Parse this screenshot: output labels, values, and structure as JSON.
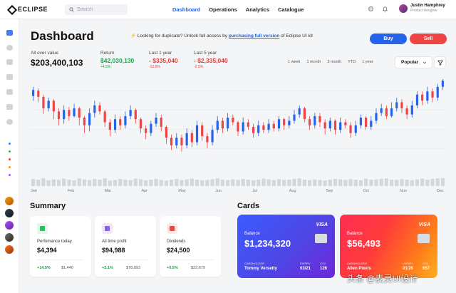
{
  "app": {
    "brand": "ECLIPSE"
  },
  "search": {
    "placeholder": "Search"
  },
  "nav": {
    "items": [
      "Dashboard",
      "Operations",
      "Analytics",
      "Catalogue"
    ],
    "active": "Dashboard"
  },
  "user": {
    "name": "Justin Hamphrey",
    "role": "Product designer"
  },
  "page": {
    "title": "Dashboard",
    "promo_text": "Looking for duplicate? Unlock full access by",
    "promo_link": "purchasing full version",
    "promo_tail": "of Eclipse UI kit",
    "buy_label": "Buy",
    "sell_label": "Sell"
  },
  "stats": [
    {
      "label": "All over value",
      "value": "$203,400,103",
      "change": ""
    },
    {
      "label": "Return",
      "value": "$42,030,130",
      "change": "+4.5%",
      "color": "#16a34a"
    },
    {
      "label": "Last 1 year",
      "value": "- $335,040",
      "change": "-12.5%",
      "color": "#e23b3b"
    },
    {
      "label": "Last 5 year",
      "value": "- $2,335,040",
      "change": "-2.5%",
      "color": "#e23b3b"
    }
  ],
  "ranges": [
    "1 week",
    "1 month",
    "3 month",
    "YTD",
    "1 year"
  ],
  "sort": {
    "selected": "Popular"
  },
  "chart_data": {
    "type": "candlestick",
    "x_labels": [
      "Jan",
      "Feb",
      "Mar",
      "Apr",
      "May",
      "Jun",
      "Jul",
      "Aug",
      "Sep",
      "Oct",
      "Nov",
      "Dec"
    ],
    "colors": {
      "up": "#2563eb",
      "down": "#ef4444"
    },
    "candles": [
      {
        "o": 0.78,
        "c": 0.86,
        "h": 0.9,
        "l": 0.72
      },
      {
        "o": 0.85,
        "c": 0.77,
        "h": 0.88,
        "l": 0.7
      },
      {
        "o": 0.77,
        "c": 0.62,
        "h": 0.8,
        "l": 0.55
      },
      {
        "o": 0.62,
        "c": 0.72,
        "h": 0.76,
        "l": 0.58
      },
      {
        "o": 0.72,
        "c": 0.58,
        "h": 0.74,
        "l": 0.48
      },
      {
        "o": 0.58,
        "c": 0.48,
        "h": 0.62,
        "l": 0.4
      },
      {
        "o": 0.48,
        "c": 0.6,
        "h": 0.66,
        "l": 0.42
      },
      {
        "o": 0.6,
        "c": 0.52,
        "h": 0.64,
        "l": 0.46
      },
      {
        "o": 0.52,
        "c": 0.62,
        "h": 0.68,
        "l": 0.5
      },
      {
        "o": 0.62,
        "c": 0.5,
        "h": 0.64,
        "l": 0.4
      },
      {
        "o": 0.5,
        "c": 0.4,
        "h": 0.52,
        "l": 0.3
      },
      {
        "o": 0.4,
        "c": 0.56,
        "h": 0.62,
        "l": 0.32
      },
      {
        "o": 0.56,
        "c": 0.66,
        "h": 0.72,
        "l": 0.5
      },
      {
        "o": 0.66,
        "c": 0.58,
        "h": 0.7,
        "l": 0.54
      },
      {
        "o": 0.58,
        "c": 0.44,
        "h": 0.6,
        "l": 0.38
      },
      {
        "o": 0.44,
        "c": 0.34,
        "h": 0.48,
        "l": 0.26
      },
      {
        "o": 0.34,
        "c": 0.48,
        "h": 0.54,
        "l": 0.3
      },
      {
        "o": 0.48,
        "c": 0.4,
        "h": 0.52,
        "l": 0.34
      },
      {
        "o": 0.4,
        "c": 0.52,
        "h": 0.58,
        "l": 0.36
      },
      {
        "o": 0.52,
        "c": 0.6,
        "h": 0.66,
        "l": 0.48
      },
      {
        "o": 0.6,
        "c": 0.48,
        "h": 0.62,
        "l": 0.42
      },
      {
        "o": 0.48,
        "c": 0.36,
        "h": 0.5,
        "l": 0.3
      },
      {
        "o": 0.36,
        "c": 0.3,
        "h": 0.4,
        "l": 0.22
      },
      {
        "o": 0.3,
        "c": 0.42,
        "h": 0.46,
        "l": 0.26
      },
      {
        "o": 0.42,
        "c": 0.5,
        "h": 0.56,
        "l": 0.38
      },
      {
        "o": 0.5,
        "c": 0.38,
        "h": 0.54,
        "l": 0.32
      },
      {
        "o": 0.38,
        "c": 0.24,
        "h": 0.4,
        "l": 0.16
      },
      {
        "o": 0.24,
        "c": 0.14,
        "h": 0.28,
        "l": 0.08
      },
      {
        "o": 0.14,
        "c": 0.24,
        "h": 0.3,
        "l": 0.1
      },
      {
        "o": 0.24,
        "c": 0.14,
        "h": 0.28,
        "l": 0.06
      },
      {
        "o": 0.14,
        "c": 0.3,
        "h": 0.36,
        "l": 0.1
      },
      {
        "o": 0.3,
        "c": 0.18,
        "h": 0.34,
        "l": 0.12
      },
      {
        "o": 0.18,
        "c": 0.4,
        "h": 0.46,
        "l": 0.14
      },
      {
        "o": 0.4,
        "c": 0.26,
        "h": 0.44,
        "l": 0.2
      },
      {
        "o": 0.26,
        "c": 0.18,
        "h": 0.3,
        "l": 0.1
      },
      {
        "o": 0.18,
        "c": 0.34,
        "h": 0.4,
        "l": 0.14
      },
      {
        "o": 0.34,
        "c": 0.46,
        "h": 0.52,
        "l": 0.3
      },
      {
        "o": 0.46,
        "c": 0.36,
        "h": 0.5,
        "l": 0.3
      },
      {
        "o": 0.36,
        "c": 0.5,
        "h": 0.56,
        "l": 0.32
      },
      {
        "o": 0.5,
        "c": 0.44,
        "h": 0.54,
        "l": 0.4
      },
      {
        "o": 0.44,
        "c": 0.32,
        "h": 0.46,
        "l": 0.26
      },
      {
        "o": 0.32,
        "c": 0.44,
        "h": 0.5,
        "l": 0.28
      },
      {
        "o": 0.44,
        "c": 0.38,
        "h": 0.48,
        "l": 0.34
      },
      {
        "o": 0.38,
        "c": 0.3,
        "h": 0.42,
        "l": 0.24
      },
      {
        "o": 0.3,
        "c": 0.4,
        "h": 0.46,
        "l": 0.26
      },
      {
        "o": 0.4,
        "c": 0.34,
        "h": 0.44,
        "l": 0.3
      },
      {
        "o": 0.34,
        "c": 0.42,
        "h": 0.48,
        "l": 0.3
      },
      {
        "o": 0.42,
        "c": 0.36,
        "h": 0.46,
        "l": 0.32
      },
      {
        "o": 0.36,
        "c": 0.48,
        "h": 0.52,
        "l": 0.32
      },
      {
        "o": 0.48,
        "c": 0.4,
        "h": 0.5,
        "l": 0.34
      },
      {
        "o": 0.4,
        "c": 0.46,
        "h": 0.52,
        "l": 0.36
      },
      {
        "o": 0.46,
        "c": 0.54,
        "h": 0.6,
        "l": 0.42
      },
      {
        "o": 0.54,
        "c": 0.62,
        "h": 0.66,
        "l": 0.5
      },
      {
        "o": 0.62,
        "c": 0.48,
        "h": 0.64,
        "l": 0.44
      },
      {
        "o": 0.48,
        "c": 0.4,
        "h": 0.52,
        "l": 0.34
      },
      {
        "o": 0.4,
        "c": 0.52,
        "h": 0.56,
        "l": 0.36
      },
      {
        "o": 0.52,
        "c": 0.44,
        "h": 0.56,
        "l": 0.38
      },
      {
        "o": 0.44,
        "c": 0.36,
        "h": 0.48,
        "l": 0.28
      },
      {
        "o": 0.36,
        "c": 0.46,
        "h": 0.5,
        "l": 0.32
      },
      {
        "o": 0.46,
        "c": 0.34,
        "h": 0.48,
        "l": 0.28
      },
      {
        "o": 0.34,
        "c": 0.44,
        "h": 0.5,
        "l": 0.3
      },
      {
        "o": 0.44,
        "c": 0.4,
        "h": 0.48,
        "l": 0.36
      },
      {
        "o": 0.4,
        "c": 0.3,
        "h": 0.44,
        "l": 0.24
      },
      {
        "o": 0.3,
        "c": 0.4,
        "h": 0.46,
        "l": 0.26
      },
      {
        "o": 0.4,
        "c": 0.5,
        "h": 0.54,
        "l": 0.36
      },
      {
        "o": 0.5,
        "c": 0.38,
        "h": 0.52,
        "l": 0.34
      },
      {
        "o": 0.38,
        "c": 0.46,
        "h": 0.52,
        "l": 0.34
      },
      {
        "o": 0.46,
        "c": 0.56,
        "h": 0.62,
        "l": 0.42
      },
      {
        "o": 0.56,
        "c": 0.62,
        "h": 0.68,
        "l": 0.52
      },
      {
        "o": 0.62,
        "c": 0.52,
        "h": 0.66,
        "l": 0.48
      },
      {
        "o": 0.52,
        "c": 0.62,
        "h": 0.7,
        "l": 0.5
      },
      {
        "o": 0.62,
        "c": 0.7,
        "h": 0.76,
        "l": 0.58
      },
      {
        "o": 0.7,
        "c": 0.62,
        "h": 0.74,
        "l": 0.56
      },
      {
        "o": 0.62,
        "c": 0.54,
        "h": 0.66,
        "l": 0.48
      },
      {
        "o": 0.54,
        "c": 0.66,
        "h": 0.72,
        "l": 0.5
      },
      {
        "o": 0.66,
        "c": 0.8,
        "h": 0.84,
        "l": 0.62
      },
      {
        "o": 0.8,
        "c": 0.72,
        "h": 0.84,
        "l": 0.66
      },
      {
        "o": 0.72,
        "c": 0.84,
        "h": 0.9,
        "l": 0.68
      },
      {
        "o": 0.84,
        "c": 0.76,
        "h": 0.88,
        "l": 0.7
      },
      {
        "o": 0.76,
        "c": 0.9,
        "h": 0.94,
        "l": 0.72
      },
      {
        "o": 0.9,
        "c": 0.98,
        "h": 1.0,
        "l": 0.86
      }
    ],
    "volume": [
      0.55,
      0.5,
      0.6,
      0.45,
      0.52,
      0.48,
      0.58,
      0.5,
      0.44,
      0.6,
      0.52,
      0.47,
      0.55,
      0.5,
      0.6,
      0.42,
      0.48,
      0.55,
      0.5,
      0.46,
      0.58,
      0.52,
      0.44,
      0.5,
      0.56,
      0.48,
      0.42,
      0.5,
      0.55,
      0.46,
      0.52,
      0.58,
      0.5,
      0.44,
      0.48,
      0.54,
      0.6,
      0.5,
      0.46,
      0.52,
      0.48,
      0.56,
      0.5,
      0.44,
      0.5,
      0.58,
      0.52,
      0.46,
      0.54,
      0.48,
      0.5,
      0.56,
      0.6,
      0.5,
      0.46,
      0.52,
      0.48,
      0.44,
      0.5,
      0.56,
      0.52,
      0.48,
      0.54,
      0.5,
      0.46,
      0.58,
      0.5,
      0.52,
      0.56,
      0.6,
      0.5,
      0.48,
      0.54,
      0.5,
      0.46,
      0.52,
      0.58,
      0.5,
      0.56,
      0.6,
      0.62
    ]
  },
  "summary": {
    "title": "Summary",
    "cards": [
      {
        "label": "Perfomance today",
        "value": "$4,394",
        "change": "+14.5%",
        "amount": "$1,440",
        "icon": "calendar-icon",
        "icon_bg": "#e3f6e8",
        "icon_color": "#22c55e"
      },
      {
        "label": "All time profit",
        "value": "$94,988",
        "change": "+2.1%",
        "amount": "$78,893",
        "icon": "funnel-icon",
        "icon_bg": "#efe6fb",
        "icon_color": "#8b5cf6"
      },
      {
        "label": "Dividends",
        "value": "$24,500",
        "change": "+0.5%",
        "amount": "$22,679",
        "icon": "image-icon",
        "icon_bg": "#fde8e8",
        "icon_color": "#ef4444"
      }
    ]
  },
  "cards": {
    "title": "Cards",
    "items": [
      {
        "balance_label": "Balance",
        "balance": "$1,234,320",
        "brand": "VISA",
        "holder_label": "CARDHOLDER",
        "holder": "Tommy Versetty",
        "expiry_label": "EXPIRY",
        "expiry": "03/21",
        "cvv_label": "CVV",
        "cvv": "126"
      },
      {
        "balance_label": "Balance",
        "balance": "$56,493",
        "brand": "VISA",
        "holder_label": "CARDHOLDER",
        "holder": "Allen Pixels",
        "expiry_label": "EXPIRY",
        "expiry": "01/20",
        "cvv_label": "CVV",
        "cvv": "657"
      }
    ]
  },
  "watermark": "头条 @麦灵UI设计"
}
